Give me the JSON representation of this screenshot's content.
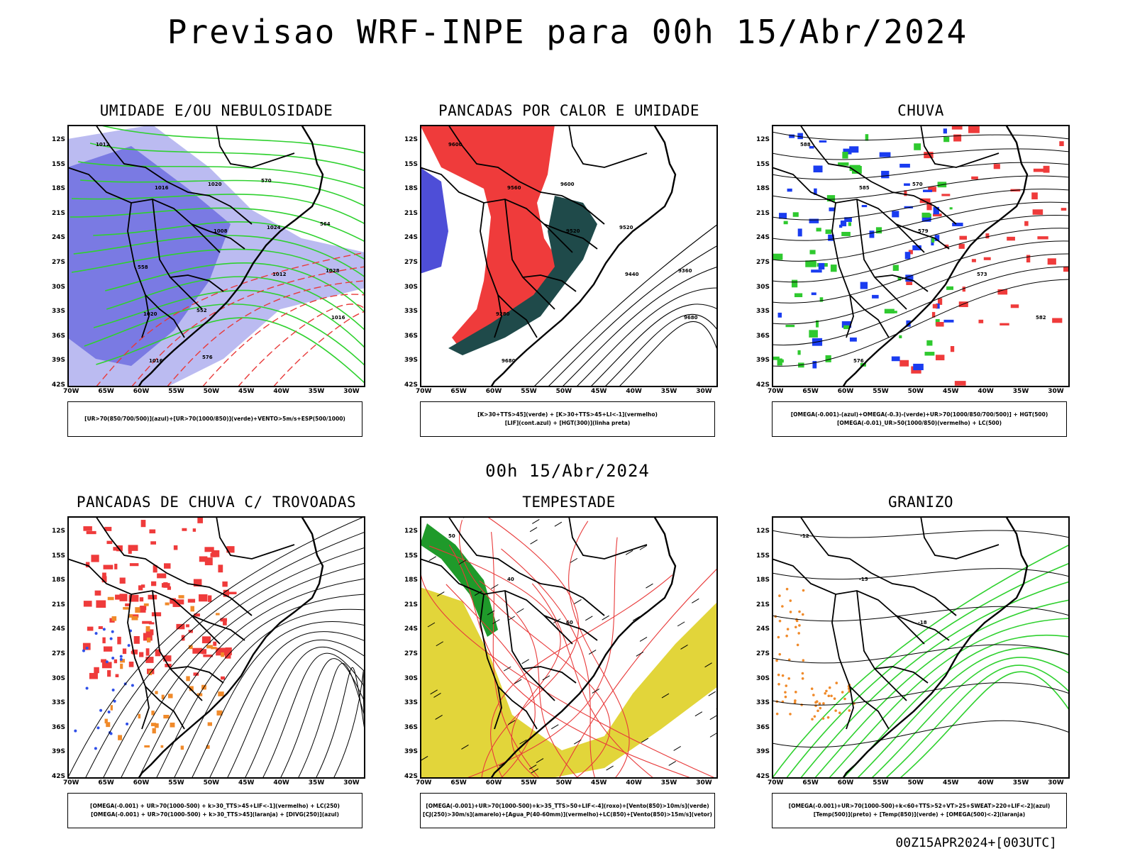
{
  "title": "Previsao WRF-INPE  para 00h 15/Abr/2024",
  "subtitle": "00h 15/Abr/2024",
  "footer": "00Z15APR2024+[003UTC]",
  "lat_labels": [
    "12S",
    "15S",
    "18S",
    "21S",
    "24S",
    "27S",
    "30S",
    "33S",
    "36S",
    "39S",
    "42S"
  ],
  "lon_labels": [
    "70W",
    "65W",
    "60W",
    "55W",
    "50W",
    "45W",
    "40W",
    "35W",
    "30W"
  ],
  "panels": [
    {
      "title": "UMIDADE E/OU NEBULOSIDADE",
      "legend": [
        "[UR>70(850/700/500)](azul)+[UR>70(1000/850)](verde)+VENTO>5m/s+ESP(500/1000)"
      ],
      "contour_labels": [
        "1012",
        "1016",
        "1008",
        "1012",
        "1016",
        "1016",
        "1020",
        "1024",
        "1028",
        "1020",
        "576",
        "570",
        "564",
        "558",
        "552"
      ],
      "fill_colors": [
        "#6f6fe0",
        "#b4b4f0",
        "#2fd12f",
        "#e83a3a"
      ]
    },
    {
      "title": "PANCADAS POR CALOR E UMIDADE",
      "legend": [
        "[K>30+TTS>45](verde) + [K>30+TTS>45+LI<-1](vermelho)",
        "[LIF](cont.azul) + [HGT(300)](linha preta)"
      ],
      "contour_labels": [
        "9600",
        "9560",
        "9520",
        "9440",
        "9680",
        "9680",
        "9600",
        "9520",
        "9360",
        "9280"
      ],
      "fill_colors": [
        "#ef3b3b",
        "#1f4a4a",
        "#2f2fd0"
      ]
    },
    {
      "title": "CHUVA",
      "legend": [
        "[OMEGA(-0.001)-(azul)+OMEGA(-0.3)-(verde)+UR>70(1000/850/700/500)] + HGT(500)",
        "[OMEGA(-0.01)_UR>50(1000/850)(vermelho) + LC(500)"
      ],
      "contour_labels": [
        "588",
        "585",
        "579",
        "573",
        "582",
        "576",
        "570"
      ],
      "fill_colors": [
        "#1a3cf0",
        "#2fc92f",
        "#ef3b3b"
      ]
    },
    {
      "title": "PANCADAS DE CHUVA C/ TROVOADAS",
      "legend": [
        "[OMEGA(-0.001) + UR>70(1000-500) + k>30_TTS>45+LIF<-1](vermelho) + LC(250)",
        "[OMEGA(-0.001) + UR>70(1000-500) + k>30_TTS>45](laranja) + [DIVG(250)](azul)"
      ],
      "contour_labels": [],
      "fill_colors": [
        "#ef3b3b",
        "#f08a2a",
        "#2f4fe8"
      ]
    },
    {
      "title": "TEMPESTADE",
      "legend": [
        "[OMEGA(-0.001)+UR>70(1000-500)+k>35_TTS>50+LIF<-4](roxo)+[Vento(850)>10m/s](verde)",
        "[CJ(250)>30m/s](amarelo)+[Agua_P(40-60mm)](vermelho)+LC(850)+[Vento(850)>15m/s](vetor)"
      ],
      "contour_labels": [
        "50",
        "40",
        "60"
      ],
      "fill_colors": [
        "#e2d53a",
        "#1f9a2a",
        "#e83a3a"
      ]
    },
    {
      "title": "GRANIZO",
      "legend": [
        "[OMEGA(-0.001)+UR>70(1000-500)+k<60+TTS>52+VT>25+SWEAT>220+LIF<-2](azul)",
        "[Temp(500)](preto) + [Temp(850)](verde) + [OMEGA(500)<-2](laranja)"
      ],
      "contour_labels": [
        "-12",
        "-15",
        "-18"
      ],
      "fill_colors": [
        "#2fd12f",
        "#f08a2a"
      ]
    }
  ]
}
